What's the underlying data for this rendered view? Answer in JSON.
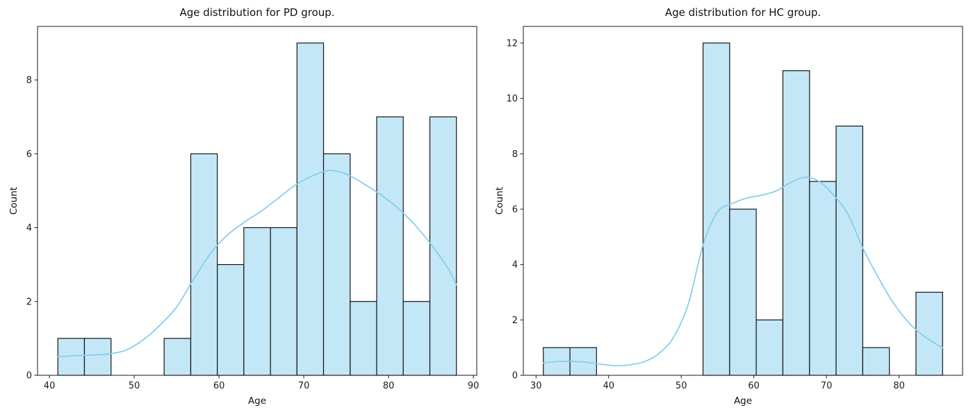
{
  "figure": {
    "background": "#ffffff",
    "text_color": "#1a1a1a"
  },
  "chart_data": [
    {
      "type": "histogram",
      "has_kde": true,
      "title": "Age distribution for PD group.",
      "xlabel": "Age",
      "ylabel": "Count",
      "bin_edges": [
        41,
        44.13,
        47.27,
        50.4,
        53.53,
        56.67,
        59.8,
        62.93,
        66.07,
        69.2,
        72.33,
        75.47,
        78.6,
        81.73,
        84.87,
        88
      ],
      "counts": [
        1,
        1,
        0,
        0,
        1,
        6,
        3,
        4,
        4,
        9,
        6,
        2,
        7,
        2,
        7
      ],
      "kde": [
        [
          41,
          0.5
        ],
        [
          43,
          0.53
        ],
        [
          45,
          0.55
        ],
        [
          47,
          0.58
        ],
        [
          49,
          0.68
        ],
        [
          51,
          0.95
        ],
        [
          53,
          1.35
        ],
        [
          55,
          1.85
        ],
        [
          57,
          2.6
        ],
        [
          59,
          3.3
        ],
        [
          61,
          3.8
        ],
        [
          63,
          4.15
        ],
        [
          65,
          4.45
        ],
        [
          67,
          4.8
        ],
        [
          69,
          5.15
        ],
        [
          71,
          5.4
        ],
        [
          73,
          5.55
        ],
        [
          75,
          5.45
        ],
        [
          77,
          5.2
        ],
        [
          79,
          4.9
        ],
        [
          81,
          4.55
        ],
        [
          83,
          4.1
        ],
        [
          85,
          3.55
        ],
        [
          87,
          2.9
        ],
        [
          88,
          2.45
        ]
      ],
      "xlim": [
        38.6,
        90.4
      ],
      "ylim": [
        0,
        9.45
      ],
      "xticks": [
        40,
        50,
        60,
        70,
        80,
        90
      ],
      "yticks": [
        0,
        2,
        4,
        6,
        8
      ],
      "grid": false,
      "legend": null,
      "bar_fill": "#c3e7f6",
      "bar_edge": "#141414",
      "kde_color": "#87ceeb"
    },
    {
      "type": "histogram",
      "has_kde": true,
      "title": "Age distribution for HC group.",
      "xlabel": "Age",
      "ylabel": "Count",
      "bin_edges": [
        31,
        34.67,
        38.33,
        42,
        45.67,
        49.33,
        53,
        56.67,
        60.33,
        64,
        67.67,
        71.33,
        75,
        78.67,
        82.33,
        86
      ],
      "counts": [
        1,
        1,
        0,
        0,
        0,
        0,
        12,
        6,
        2,
        11,
        7,
        9,
        1,
        0,
        3
      ],
      "kde": [
        [
          31,
          0.45
        ],
        [
          33,
          0.5
        ],
        [
          35,
          0.5
        ],
        [
          37,
          0.47
        ],
        [
          39,
          0.4
        ],
        [
          41,
          0.35
        ],
        [
          43,
          0.38
        ],
        [
          45,
          0.5
        ],
        [
          47,
          0.8
        ],
        [
          49,
          1.4
        ],
        [
          51,
          2.6
        ],
        [
          53,
          4.7
        ],
        [
          55,
          5.9
        ],
        [
          57,
          6.2
        ],
        [
          59,
          6.4
        ],
        [
          61,
          6.5
        ],
        [
          63,
          6.65
        ],
        [
          65,
          6.95
        ],
        [
          67,
          7.15
        ],
        [
          69,
          7.0
        ],
        [
          71,
          6.5
        ],
        [
          73,
          5.8
        ],
        [
          75,
          4.6
        ],
        [
          77,
          3.6
        ],
        [
          79,
          2.7
        ],
        [
          81,
          2.0
        ],
        [
          83,
          1.5
        ],
        [
          85,
          1.15
        ],
        [
          86,
          1.0
        ]
      ],
      "xlim": [
        28.25,
        88.75
      ],
      "ylim": [
        0,
        12.6
      ],
      "xticks": [
        30,
        40,
        50,
        60,
        70,
        80
      ],
      "yticks": [
        0,
        2,
        4,
        6,
        8,
        10,
        12
      ],
      "grid": false,
      "legend": null,
      "bar_fill": "#c3e7f6",
      "bar_edge": "#141414",
      "kde_color": "#87ceeb"
    }
  ]
}
